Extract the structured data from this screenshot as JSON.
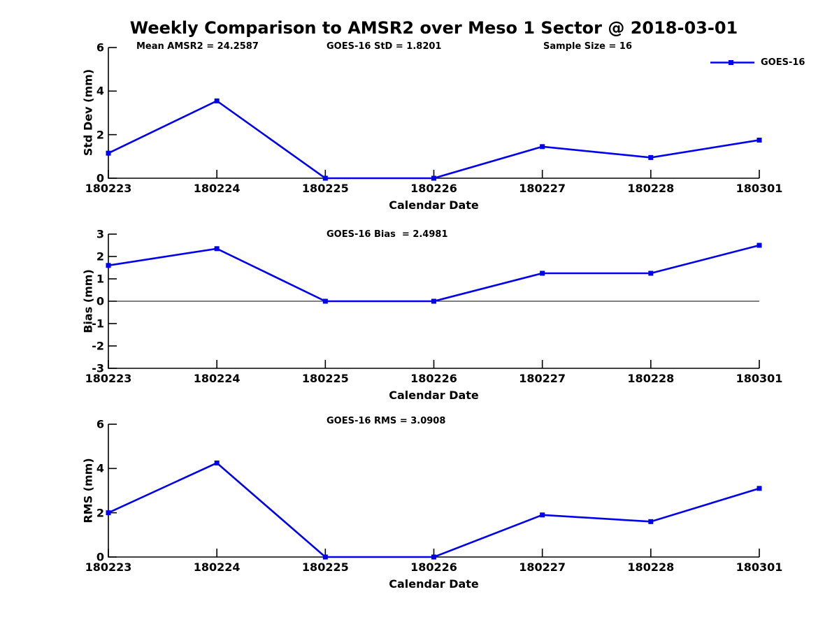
{
  "title": "Weekly Comparison to AMSR2 over Meso 1 Sector @ 2018-03-01",
  "colors": {
    "line": "#0000ee",
    "axis": "#000000",
    "text": "#000000"
  },
  "legend": {
    "label": "GOES-16"
  },
  "chart_data": [
    {
      "type": "line",
      "ylabel": "Std Dev (mm)",
      "xlabel": "Calendar Date",
      "ylim": [
        0,
        6
      ],
      "yticks": [
        6,
        4,
        2,
        0
      ],
      "categories": [
        "180223",
        "180224",
        "180225",
        "180226",
        "180227",
        "180228",
        "180301"
      ],
      "annotations": [
        "Mean AMSR2 = 24.2587",
        "GOES-16 StD = 1.8201",
        "Sample Size = 16"
      ],
      "legend_position": "top-right",
      "grid": false,
      "series": [
        {
          "name": "GOES-16",
          "values": [
            1.15,
            3.55,
            0,
            0,
            1.45,
            0.95,
            1.75
          ]
        }
      ]
    },
    {
      "type": "line",
      "ylabel": "Bias (mm)",
      "xlabel": "Calendar Date",
      "ylim": [
        -3,
        3
      ],
      "yticks": [
        3,
        2,
        1,
        0,
        -1,
        -2,
        -3
      ],
      "zero_line": true,
      "categories": [
        "180223",
        "180224",
        "180225",
        "180226",
        "180227",
        "180228",
        "180301"
      ],
      "annotations": [
        "GOES-16 Bias  = 2.4981"
      ],
      "grid": false,
      "series": [
        {
          "name": "GOES-16",
          "values": [
            1.6,
            2.35,
            0,
            0,
            1.25,
            1.25,
            2.5
          ]
        }
      ]
    },
    {
      "type": "line",
      "ylabel": "RMS (mm)",
      "xlabel": "Calendar Date",
      "ylim": [
        0,
        6
      ],
      "yticks": [
        6,
        4,
        2,
        0
      ],
      "categories": [
        "180223",
        "180224",
        "180225",
        "180226",
        "180227",
        "180228",
        "180301"
      ],
      "annotations": [
        "GOES-16 RMS = 3.0908"
      ],
      "grid": false,
      "series": [
        {
          "name": "GOES-16",
          "values": [
            2.0,
            4.25,
            0,
            0,
            1.9,
            1.6,
            3.1
          ]
        }
      ]
    }
  ]
}
